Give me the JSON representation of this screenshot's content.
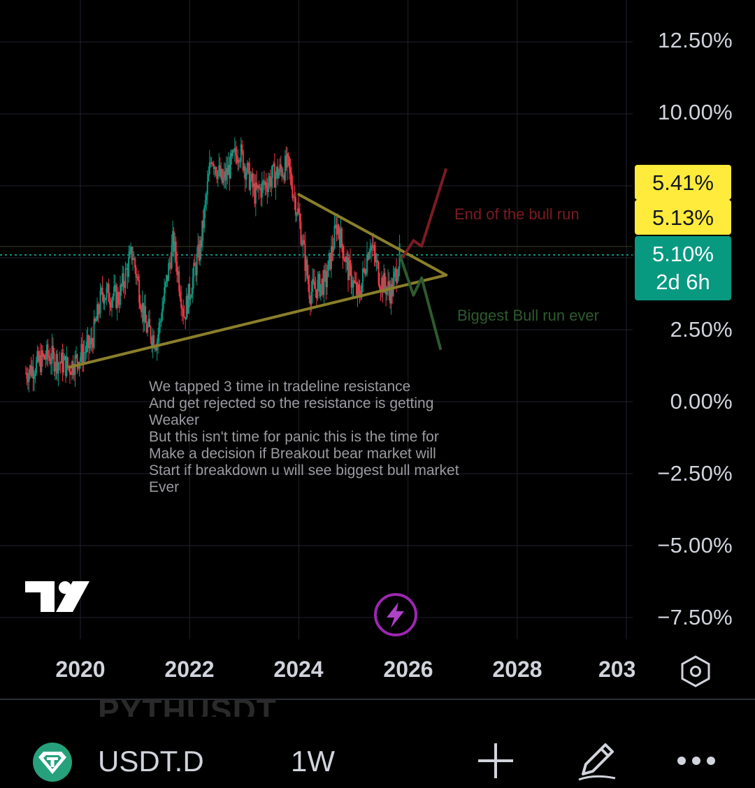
{
  "chart_data": {
    "type": "candlestick",
    "symbol": "USDT.D",
    "interval": "1W",
    "x_ticks": [
      "2020",
      "2022",
      "2024",
      "2026",
      "2028",
      "203"
    ],
    "y_ticks": [
      "12.50%",
      "10.00%",
      "7.50%",
      "5.00%",
      "2.50%",
      "0.00%",
      "−2.50%",
      "−5.00%",
      "−7.50%"
    ],
    "ylim": [
      -8.5,
      13.5
    ],
    "xlim": [
      2019.0,
      2030.3
    ],
    "price_tags": [
      {
        "label": "5.41%",
        "color": "#ffeb3b"
      },
      {
        "label": "5.13%",
        "color": "#ffeb3b"
      },
      {
        "label": "5.10%",
        "color": "#089981"
      }
    ],
    "countdown": "2d 6h",
    "last_price": 5.1,
    "price_path": [
      [
        2019.0,
        1.0
      ],
      [
        2019.4,
        1.6
      ],
      [
        2019.8,
        1.2
      ],
      [
        2020.2,
        2.0
      ],
      [
        2020.4,
        3.8
      ],
      [
        2020.7,
        3.6
      ],
      [
        2020.95,
        5.2
      ],
      [
        2021.2,
        2.6
      ],
      [
        2021.4,
        2.1
      ],
      [
        2021.7,
        5.6
      ],
      [
        2021.9,
        3.0
      ],
      [
        2022.2,
        5.4
      ],
      [
        2022.4,
        8.6
      ],
      [
        2022.6,
        7.6
      ],
      [
        2022.9,
        8.8
      ],
      [
        2023.2,
        7.2
      ],
      [
        2023.5,
        7.8
      ],
      [
        2023.8,
        8.2
      ],
      [
        2024.0,
        6.4
      ],
      [
        2024.2,
        3.8
      ],
      [
        2024.5,
        4.2
      ],
      [
        2024.7,
        6.2
      ],
      [
        2024.9,
        4.6
      ],
      [
        2025.1,
        3.6
      ],
      [
        2025.3,
        5.6
      ],
      [
        2025.5,
        4.2
      ],
      [
        2025.7,
        3.8
      ],
      [
        2025.85,
        5.1
      ]
    ],
    "trendlines": [
      {
        "name": "resistance",
        "from": [
          2024.0,
          7.2
        ],
        "to": [
          2026.7,
          4.4
        ],
        "color": "#8a7f2a"
      },
      {
        "name": "support",
        "from": [
          2019.8,
          1.2
        ],
        "to": [
          2026.7,
          4.4
        ],
        "color": "#8a7f2a"
      }
    ],
    "projections": [
      {
        "name": "End of the bull run",
        "color": "#7b1b22",
        "points": [
          [
            2025.9,
            5.0
          ],
          [
            2026.1,
            5.6
          ],
          [
            2026.25,
            5.4
          ],
          [
            2026.7,
            8.1
          ]
        ]
      },
      {
        "name": "Biggest Bull run ever",
        "color": "#2e5a2e",
        "points": [
          [
            2025.85,
            5.1
          ],
          [
            2026.1,
            3.7
          ],
          [
            2026.25,
            4.3
          ],
          [
            2026.6,
            1.8
          ]
        ]
      }
    ],
    "annotations": [
      "End of the bull run",
      "Biggest Bull run ever"
    ],
    "note": "We  tapped 3 time in tradeline resistance\nAnd get rejected so the resistance is getting\nWeaker\nBut this isn't time for panic this is the time for\nMake a decision  if Breakout bear market will\nStart if breakdown u will see biggest bull market\nEver",
    "colors": {
      "up": "#089981",
      "down": "#f23645",
      "background": "#000000"
    }
  },
  "toolbar": {
    "symbol": "USDT.D",
    "interval": "1W",
    "ghost_symbol": "PYTHUSDT"
  }
}
